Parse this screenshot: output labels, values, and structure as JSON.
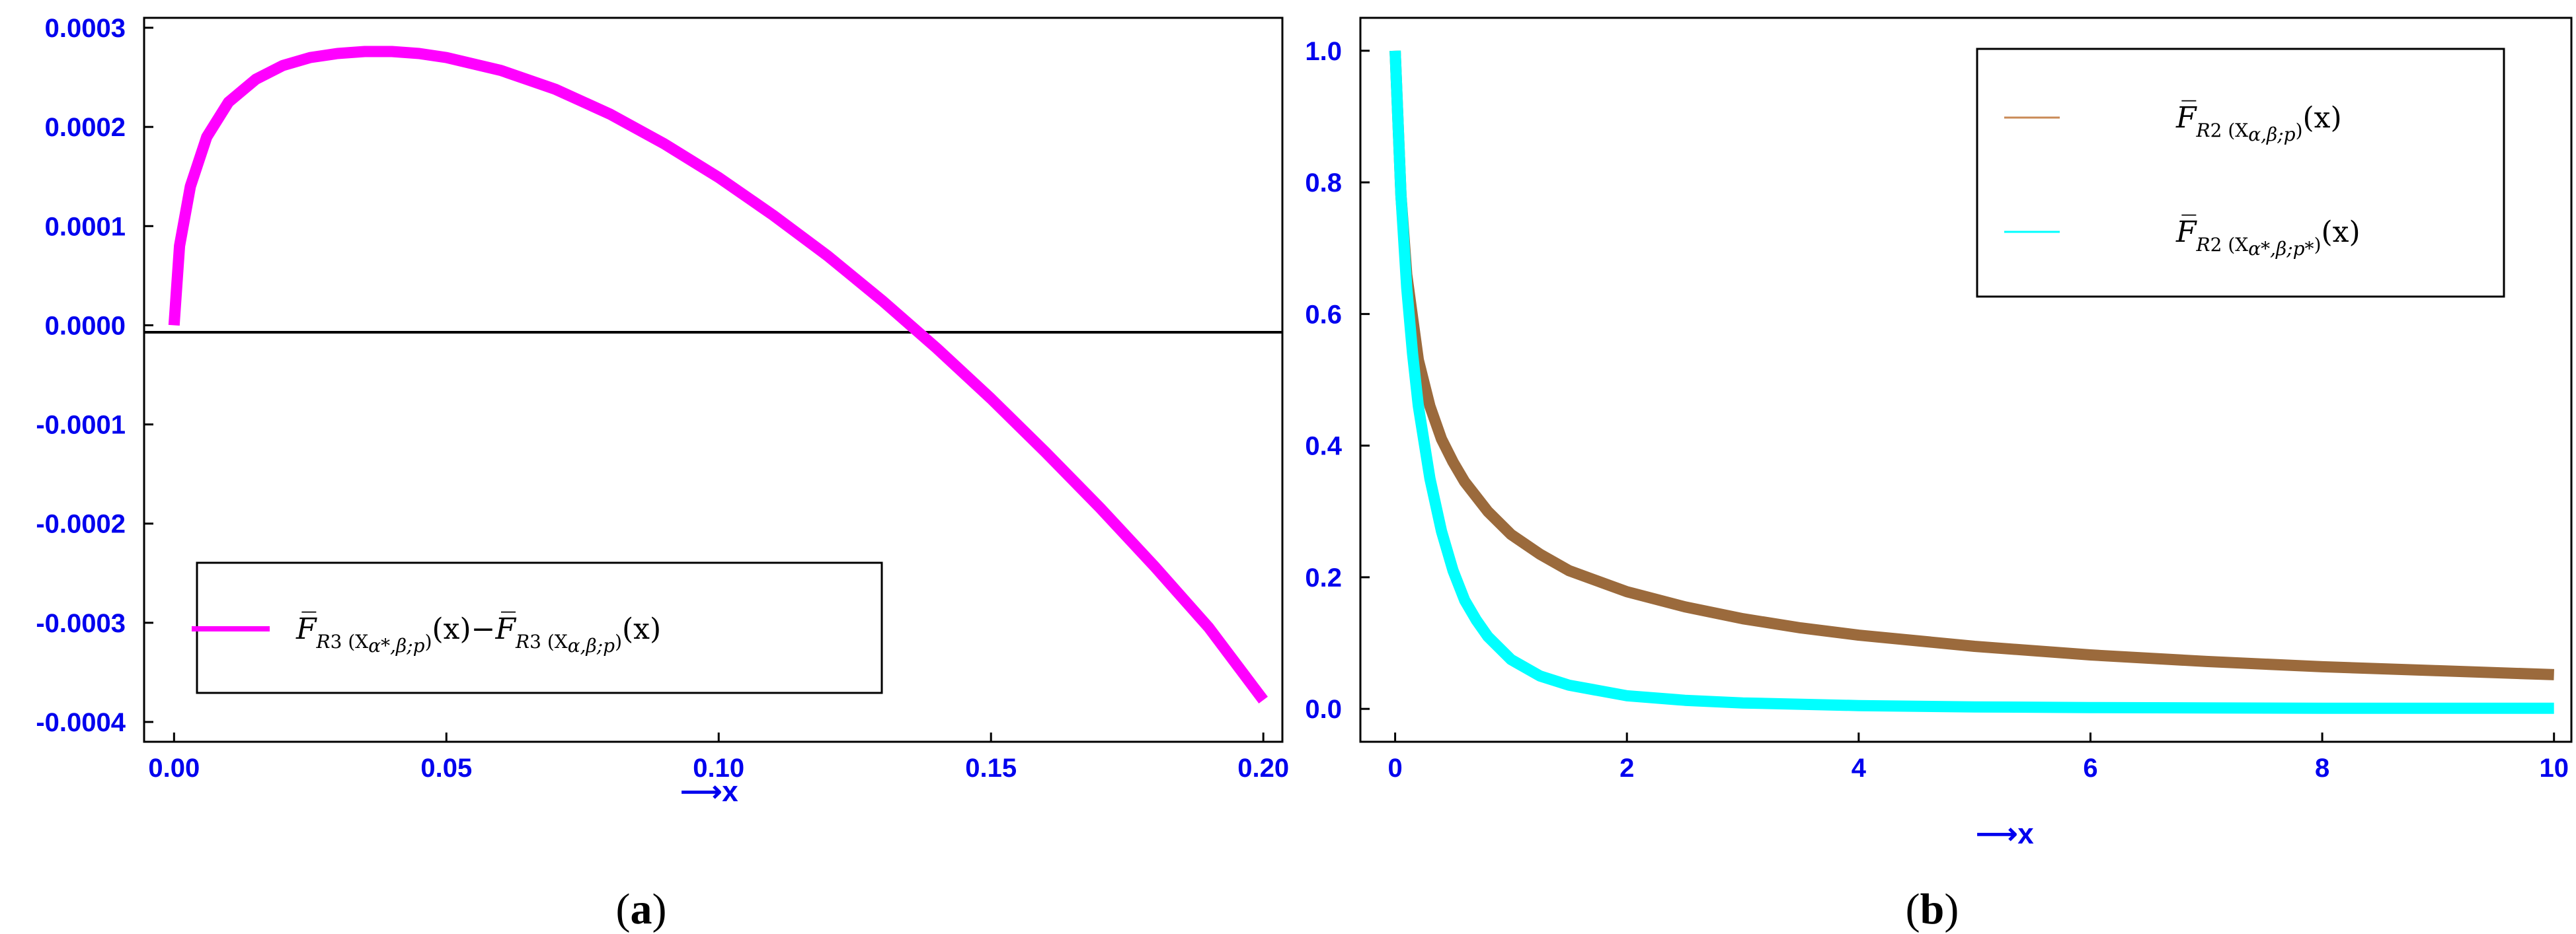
{
  "colors": {
    "tick": "#0000ee",
    "magenta": "#ff00ff",
    "brown": "#9b6a3c",
    "cyan": "#00ffff",
    "frame": "#000000"
  },
  "chart_data": [
    {
      "type": "line",
      "panel_label": "a",
      "xlabel": "⟶x",
      "xlim": [
        -0.0055,
        0.2035
      ],
      "ylim": [
        -0.00042,
        0.00031
      ],
      "xticks": [
        "0.00",
        "0.05",
        "0.10",
        "0.15",
        "0.20"
      ],
      "xtick_values": [
        0,
        0.05,
        0.1,
        0.15,
        0.2
      ],
      "yticks": [
        "0.0003",
        "0.0002",
        "0.0001",
        "0.0000",
        "-0.0001",
        "-0.0002",
        "-0.0003",
        "-0.0004"
      ],
      "ytick_values": [
        0.0003,
        0.0002,
        0.0001,
        0,
        -0.0001,
        -0.0002,
        -0.0003,
        -0.0004
      ],
      "reference_line_y": 0,
      "legend_position": "bottom-left",
      "series": [
        {
          "name": "F̅R3(Xα*,β;p)(x)−F̅R3(Xα,β;p)(x)",
          "color": "#ff00ff",
          "x": [
            0,
            0.001,
            0.003,
            0.006,
            0.01,
            0.015,
            0.02,
            0.025,
            0.03,
            0.035,
            0.04,
            0.045,
            0.05,
            0.06,
            0.07,
            0.08,
            0.09,
            0.1,
            0.11,
            0.12,
            0.13,
            0.14,
            0.15,
            0.16,
            0.17,
            0.18,
            0.19,
            0.2
          ],
          "y": [
            0,
            8e-05,
            0.00014,
            0.00019,
            0.000225,
            0.000248,
            0.000262,
            0.00027,
            0.000274,
            0.000276,
            0.000276,
            0.000274,
            0.00027,
            0.000257,
            0.000238,
            0.000213,
            0.000183,
            0.000149,
            0.000111,
            7e-05,
            2.5e-05,
            -2.3e-05,
            -7.4e-05,
            -0.000128,
            -0.000184,
            -0.000243,
            -0.000305,
            -0.000378
          ]
        }
      ]
    },
    {
      "type": "line",
      "panel_label": "b",
      "xlabel": "⟶x",
      "xlim": [
        -0.3,
        10.15
      ],
      "ylim": [
        -0.05,
        1.05
      ],
      "xticks": [
        "0",
        "2",
        "4",
        "6",
        "8",
        "10"
      ],
      "xtick_values": [
        0,
        2,
        4,
        6,
        8,
        10
      ],
      "yticks": [
        "1.0",
        "0.8",
        "0.6",
        "0.4",
        "0.2",
        "0.0"
      ],
      "ytick_values": [
        1,
        0.8,
        0.6,
        0.4,
        0.2,
        0
      ],
      "legend_position": "top-right",
      "series": [
        {
          "name": "F̅R2(Xα,β;p)(x)",
          "color": "#9b6a3c",
          "x": [
            0,
            0.05,
            0.1,
            0.2,
            0.3,
            0.4,
            0.5,
            0.6,
            0.8,
            1,
            1.25,
            1.5,
            2,
            2.5,
            3,
            3.5,
            4,
            5,
            6,
            7,
            8,
            9,
            10
          ],
          "y": [
            1,
            0.78,
            0.66,
            0.53,
            0.46,
            0.41,
            0.375,
            0.345,
            0.3,
            0.265,
            0.235,
            0.21,
            0.178,
            0.155,
            0.137,
            0.123,
            0.112,
            0.095,
            0.082,
            0.072,
            0.064,
            0.058,
            0.052
          ]
        },
        {
          "name": "F̅R2(Xα*,β;p*)(x)",
          "color": "#00ffff",
          "x": [
            0,
            0.05,
            0.1,
            0.15,
            0.2,
            0.3,
            0.4,
            0.5,
            0.6,
            0.7,
            0.8,
            1,
            1.25,
            1.5,
            2,
            2.5,
            3,
            4,
            5,
            6,
            7,
            8,
            9,
            10
          ],
          "y": [
            1,
            0.78,
            0.64,
            0.54,
            0.46,
            0.35,
            0.27,
            0.21,
            0.165,
            0.135,
            0.11,
            0.075,
            0.05,
            0.036,
            0.02,
            0.013,
            0.009,
            0.005,
            0.003,
            0.002,
            0.0015,
            0.001,
            0.001,
            0.001
          ]
        }
      ]
    }
  ]
}
